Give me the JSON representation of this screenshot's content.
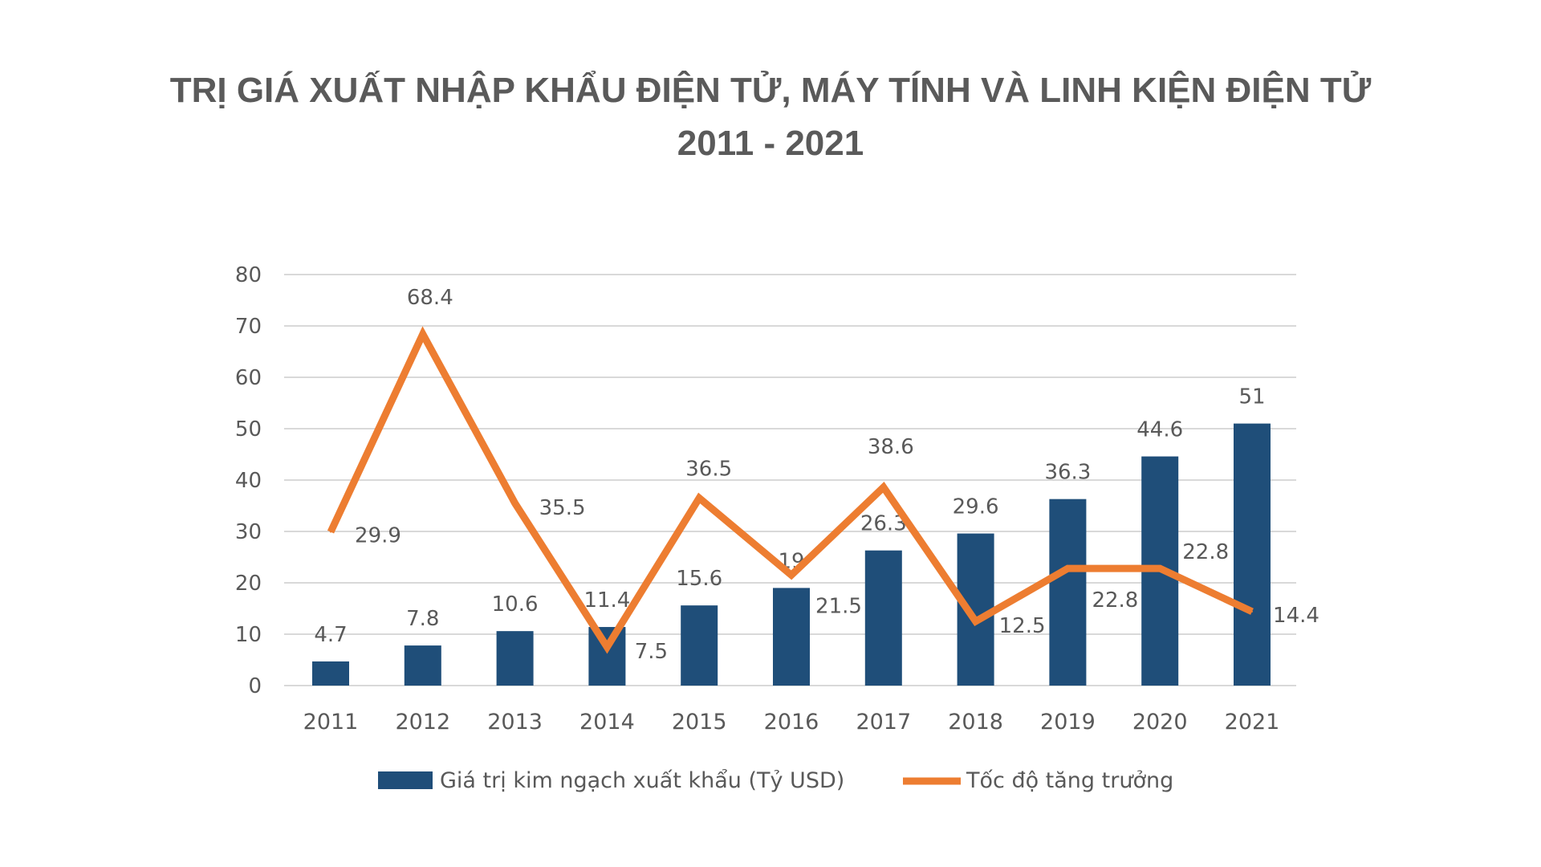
{
  "title": {
    "line1": "TRỊ GIÁ XUẤT NHẬP KHẨU ĐIỆN TỬ, MÁY TÍNH VÀ LINH KIỆN ĐIỆN TỬ",
    "line2": "2011 - 2021"
  },
  "chart_data": {
    "type": "bar+line",
    "categories": [
      "2011",
      "2012",
      "2013",
      "2014",
      "2015",
      "2016",
      "2017",
      "2018",
      "2019",
      "2020",
      "2021"
    ],
    "series": [
      {
        "name": "Giá trị kim ngạch xuất khẩu (Tỷ USD)",
        "type": "bar",
        "color": "#1f4e79",
        "values": [
          4.7,
          7.8,
          10.6,
          11.4,
          15.6,
          19,
          26.3,
          29.6,
          36.3,
          44.6,
          51
        ]
      },
      {
        "name": "Tốc độ tăng trưởng",
        "type": "line",
        "color": "#ed7d31",
        "values": [
          29.9,
          68.4,
          35.5,
          7.5,
          36.5,
          21.5,
          38.6,
          12.5,
          22.8,
          22.8,
          14.4
        ]
      }
    ],
    "ylim": [
      0,
      80
    ],
    "yticks": [
      0,
      10,
      20,
      30,
      40,
      50,
      60,
      70,
      80
    ],
    "grid": true,
    "legend": "bottom"
  }
}
